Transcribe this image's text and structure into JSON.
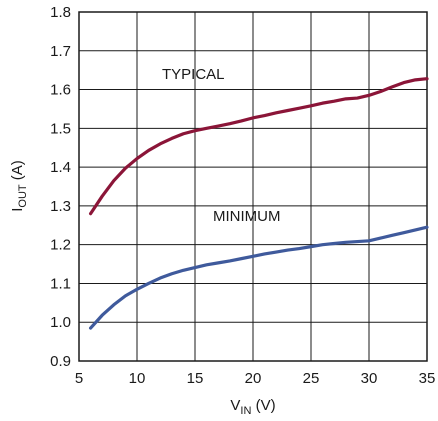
{
  "chart_data": {
    "type": "line",
    "xlabel": {
      "main": "V",
      "sub": "IN",
      "unit": " (V)"
    },
    "ylabel": {
      "main": "I",
      "sub": "OUT",
      "unit": " (A)"
    },
    "xlim": [
      5,
      35
    ],
    "ylim": [
      0.9,
      1.8
    ],
    "xticks": [
      5,
      10,
      15,
      20,
      25,
      30,
      35
    ],
    "yticks": [
      0.9,
      1.0,
      1.1,
      1.2,
      1.3,
      1.4,
      1.5,
      1.6,
      1.7,
      1.8
    ],
    "xtick_labels": [
      "5",
      "10",
      "15",
      "20",
      "25",
      "30",
      "35"
    ],
    "ytick_labels": [
      "0.9",
      "1.0",
      "1.1",
      "1.2",
      "1.3",
      "1.4",
      "1.5",
      "1.6",
      "1.7",
      "1.8"
    ],
    "grid": true,
    "series": [
      {
        "name": "TYPICAL",
        "color": "#8b1538",
        "x": [
          6,
          7,
          8,
          9,
          10,
          11,
          12,
          13,
          14,
          15,
          16,
          17,
          18,
          19,
          20,
          21,
          22,
          23,
          24,
          25,
          26,
          27,
          28,
          29,
          30,
          31,
          32,
          33,
          34,
          35
        ],
        "y": [
          1.28,
          1.325,
          1.365,
          1.397,
          1.422,
          1.443,
          1.46,
          1.474,
          1.486,
          1.494,
          1.5,
          1.506,
          1.512,
          1.519,
          1.527,
          1.533,
          1.54,
          1.546,
          1.552,
          1.558,
          1.565,
          1.57,
          1.576,
          1.578,
          1.585,
          1.595,
          1.607,
          1.618,
          1.625,
          1.628
        ]
      },
      {
        "name": "MINIMUM",
        "color": "#3f5a9c",
        "x": [
          6,
          7,
          8,
          9,
          10,
          11,
          12,
          13,
          14,
          15,
          16,
          17,
          18,
          19,
          20,
          21,
          22,
          23,
          24,
          25,
          26,
          27,
          28,
          29,
          30,
          31,
          32,
          33,
          34,
          35
        ],
        "y": [
          0.985,
          1.018,
          1.045,
          1.068,
          1.085,
          1.1,
          1.114,
          1.125,
          1.134,
          1.141,
          1.148,
          1.153,
          1.158,
          1.164,
          1.17,
          1.176,
          1.181,
          1.186,
          1.19,
          1.195,
          1.2,
          1.203,
          1.206,
          1.208,
          1.21,
          1.217,
          1.224,
          1.231,
          1.238,
          1.245
        ]
      }
    ]
  }
}
